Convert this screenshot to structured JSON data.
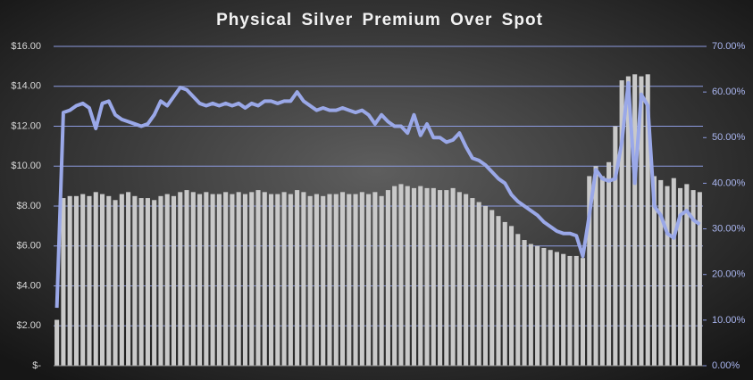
{
  "chart_data": {
    "type": "bar_line",
    "title": "Physical  Silver  Premium  Over  Spot",
    "ylim": [
      0,
      16
    ],
    "yticks": [
      {
        "value": 0,
        "label": "$-"
      },
      {
        "value": 2,
        "label": "$2.00"
      },
      {
        "value": 4,
        "label": "$4.00"
      },
      {
        "value": 6,
        "label": "$6.00"
      },
      {
        "value": 8,
        "label": "$8.00"
      },
      {
        "value": 10,
        "label": "$10.00"
      },
      {
        "value": 12,
        "label": "$12.00"
      },
      {
        "value": 14,
        "label": "$14.00"
      },
      {
        "value": 16,
        "label": "$16.00"
      }
    ],
    "y2lim": [
      0,
      70
    ],
    "y2ticks": [
      {
        "value": 0,
        "label": "0.00%"
      },
      {
        "value": 10,
        "label": "10.00%"
      },
      {
        "value": 20,
        "label": "20.00%"
      },
      {
        "value": 30,
        "label": "30.00%"
      },
      {
        "value": 40,
        "label": "40.00%"
      },
      {
        "value": 50,
        "label": "50.00%"
      },
      {
        "value": 60,
        "label": "60.00%"
      },
      {
        "value": 70,
        "label": "70.00%"
      }
    ],
    "grid": true,
    "series": [
      {
        "type": "bar",
        "color": "#c9c9c9",
        "axis": "y",
        "values": [
          2.3,
          8.4,
          8.5,
          8.5,
          8.6,
          8.5,
          8.7,
          8.6,
          8.5,
          8.3,
          8.6,
          8.7,
          8.5,
          8.4,
          8.4,
          8.3,
          8.5,
          8.6,
          8.5,
          8.7,
          8.8,
          8.7,
          8.6,
          8.7,
          8.6,
          8.6,
          8.7,
          8.6,
          8.7,
          8.6,
          8.7,
          8.8,
          8.7,
          8.6,
          8.6,
          8.7,
          8.6,
          8.8,
          8.7,
          8.5,
          8.6,
          8.5,
          8.6,
          8.6,
          8.7,
          8.6,
          8.6,
          8.7,
          8.6,
          8.7,
          8.5,
          8.8,
          9.0,
          9.1,
          9.0,
          8.9,
          9.0,
          8.9,
          8.9,
          8.8,
          8.8,
          8.9,
          8.7,
          8.6,
          8.4,
          8.2,
          8.0,
          7.8,
          7.5,
          7.2,
          7.0,
          6.6,
          6.3,
          6.1,
          6.0,
          5.9,
          5.8,
          5.7,
          5.6,
          5.5,
          5.5,
          5.4,
          9.5,
          10.0,
          9.5,
          10.2,
          12.0,
          14.3,
          14.5,
          14.6,
          14.5,
          14.6,
          9.5,
          9.3,
          9.0,
          9.4,
          8.9,
          9.1,
          8.8,
          8.7
        ]
      },
      {
        "type": "line",
        "color": "#9aa8e8",
        "axis": "y2",
        "values": [
          12.7,
          55.5,
          56,
          57,
          57.5,
          56.5,
          52,
          57.5,
          58,
          55,
          54,
          53.5,
          53,
          52.5,
          53,
          55,
          58,
          57,
          59,
          61,
          60.5,
          59,
          57.5,
          57,
          57.5,
          57,
          57.5,
          57,
          57.5,
          56.5,
          57.5,
          57,
          58,
          58,
          57.5,
          58,
          58,
          60,
          58,
          57,
          56,
          56.5,
          56,
          56,
          56.5,
          56,
          55.5,
          56,
          55,
          53,
          55,
          53.5,
          52.5,
          52.5,
          51,
          55,
          50.5,
          53,
          50,
          50,
          49,
          49.5,
          51,
          48,
          45.5,
          45,
          44,
          42.5,
          41,
          40,
          37.5,
          36,
          35,
          34,
          33,
          31.5,
          30.5,
          29.5,
          29,
          29,
          28.5,
          24,
          33,
          43,
          41,
          40.5,
          41,
          49,
          62,
          40,
          59.5,
          57,
          35,
          33,
          29,
          28,
          33,
          34,
          32,
          31
        ]
      }
    ]
  }
}
